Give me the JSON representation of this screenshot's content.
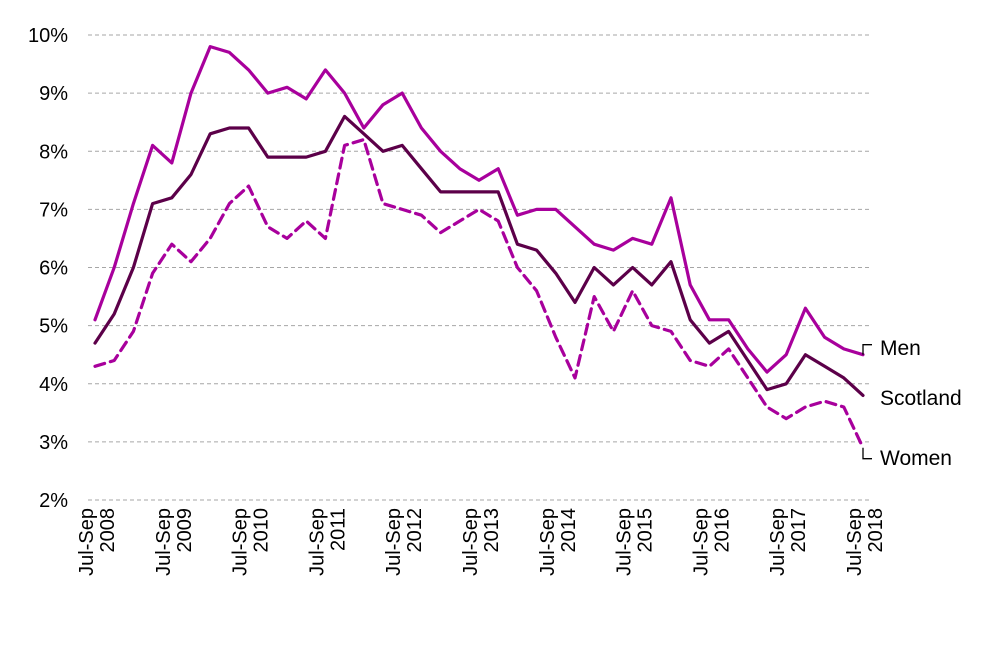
{
  "chart_data": {
    "type": "line",
    "title": "",
    "xlabel": "",
    "ylabel": "",
    "ylim": [
      2,
      10
    ],
    "y_ticks": [
      "2%",
      "3%",
      "4%",
      "5%",
      "6%",
      "7%",
      "8%",
      "9%",
      "10%"
    ],
    "x_tick_labels": [
      [
        "Jul-Sep",
        "2008"
      ],
      [
        "Jul-Sep",
        "2009"
      ],
      [
        "Jul-Sep",
        "2010"
      ],
      [
        "Jul-Sep",
        "2011"
      ],
      [
        "Jul-Sep",
        "2012"
      ],
      [
        "Jul-Sep",
        "2013"
      ],
      [
        "Jul-Sep",
        "2014"
      ],
      [
        "Jul-Sep",
        "2015"
      ],
      [
        "Jul-Sep",
        "2016"
      ],
      [
        "Jul-Sep",
        "2017"
      ],
      [
        "Jul-Sep",
        "2018"
      ]
    ],
    "grid": true,
    "legend": "end-of-line labels",
    "series": [
      {
        "name": "Men",
        "color": "#a8009c",
        "dash": "solid",
        "values": [
          5.1,
          6.0,
          7.1,
          8.1,
          7.8,
          9.0,
          9.8,
          9.7,
          9.4,
          9.0,
          9.1,
          8.9,
          9.4,
          9.0,
          8.4,
          8.8,
          9.0,
          8.4,
          8.0,
          7.7,
          7.5,
          7.7,
          6.9,
          7.0,
          7.0,
          6.7,
          6.4,
          6.3,
          6.5,
          6.4,
          7.2,
          5.7,
          5.1,
          5.1,
          4.6,
          4.2,
          4.5,
          5.3,
          4.8,
          4.6,
          4.5
        ]
      },
      {
        "name": "Scotland",
        "color": "#5c0049",
        "dash": "solid",
        "values": [
          4.7,
          5.2,
          6.0,
          7.1,
          7.2,
          7.6,
          8.3,
          8.4,
          8.4,
          7.9,
          7.9,
          7.9,
          8.0,
          8.6,
          8.3,
          8.0,
          8.1,
          7.7,
          7.3,
          7.3,
          7.3,
          7.3,
          6.4,
          6.3,
          5.9,
          5.4,
          6.0,
          5.7,
          6.0,
          5.7,
          6.1,
          5.1,
          4.7,
          4.9,
          4.4,
          3.9,
          4.0,
          4.5,
          4.3,
          4.1,
          3.8
        ]
      },
      {
        "name": "Women",
        "color": "#a8009c",
        "dash": "dashed",
        "values": [
          4.3,
          4.4,
          4.9,
          5.9,
          6.4,
          6.1,
          6.5,
          7.1,
          7.4,
          6.7,
          6.5,
          6.8,
          6.5,
          8.1,
          8.2,
          7.1,
          7.0,
          6.9,
          6.6,
          6.8,
          7.0,
          6.8,
          6.0,
          5.6,
          4.8,
          4.1,
          5.5,
          4.9,
          5.6,
          5.0,
          4.9,
          4.4,
          4.3,
          4.6,
          4.1,
          3.6,
          3.4,
          3.6,
          3.7,
          3.6,
          2.9
        ]
      }
    ]
  }
}
